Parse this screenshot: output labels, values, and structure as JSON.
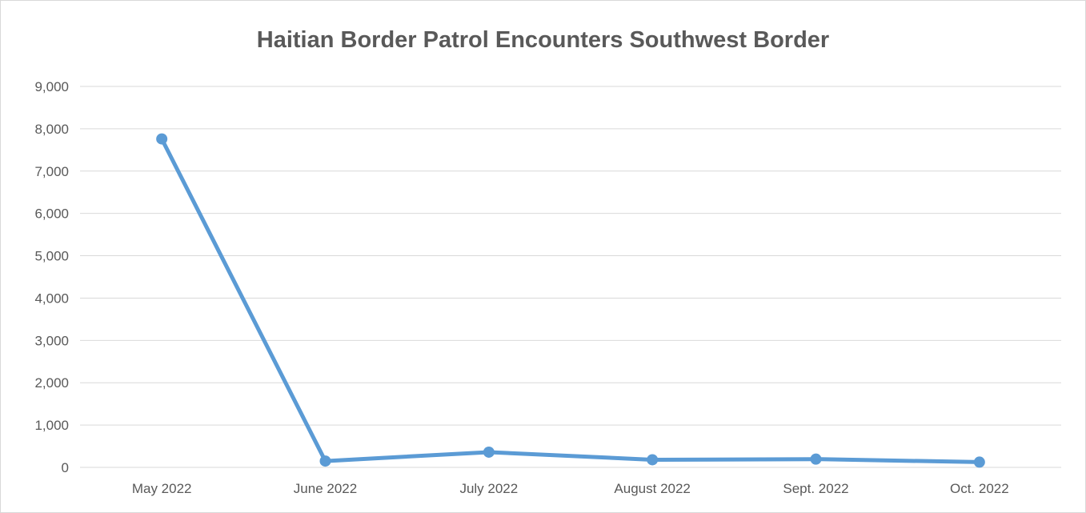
{
  "chart_data": {
    "type": "line",
    "title": "Haitian Border Patrol Encounters Southwest Border",
    "xlabel": "",
    "ylabel": "",
    "categories": [
      "May 2022",
      "June 2022",
      "July 2022",
      "August 2022",
      "Sept. 2022",
      "Oct. 2022"
    ],
    "series": [
      {
        "values": [
          7760,
          150,
          360,
          180,
          195,
          125
        ]
      }
    ],
    "ylim": [
      0,
      9000
    ],
    "yticks": [
      0,
      1000,
      2000,
      3000,
      4000,
      5000,
      6000,
      7000,
      8000,
      9000
    ],
    "ytick_labels": [
      "0",
      "1,000",
      "2,000",
      "3,000",
      "4,000",
      "5,000",
      "6,000",
      "7,000",
      "8,000",
      "9,000"
    ],
    "grid": true,
    "legend": "none",
    "colors": {
      "line": "#5b9bd5",
      "grid": "#d9d9d9",
      "text": "#595959"
    }
  }
}
